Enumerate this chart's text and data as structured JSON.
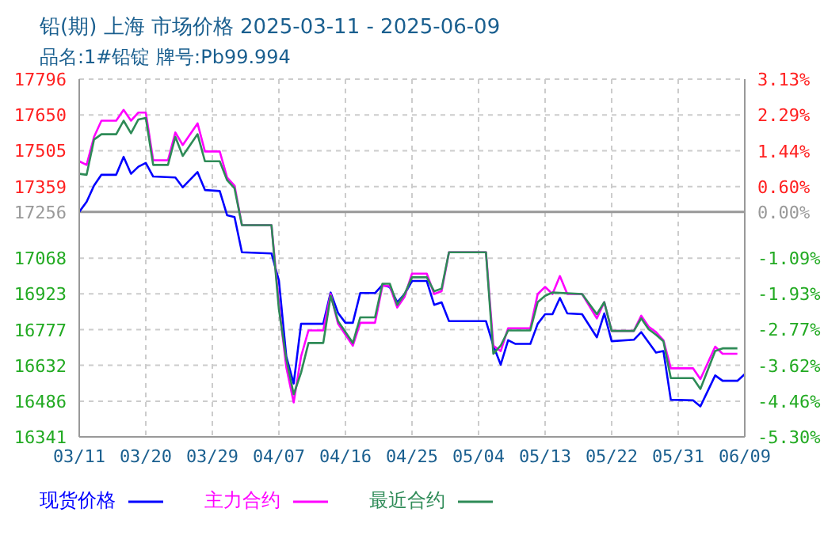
{
  "chart_data": {
    "type": "line",
    "title": "铅(期) 上海 市场价格 2025-03-11 - 2025-06-09",
    "subtitle": "品名:1#铅锭 牌号:Pb99.994",
    "xlim": [
      "2025-03-11",
      "2025-06-09"
    ],
    "xticks": [
      {
        "value": "2025-03-11",
        "label": "03/11"
      },
      {
        "value": "2025-03-20",
        "label": "03/20"
      },
      {
        "value": "2025-03-29",
        "label": "03/29"
      },
      {
        "value": "2025-04-07",
        "label": "04/07"
      },
      {
        "value": "2025-04-16",
        "label": "04/16"
      },
      {
        "value": "2025-04-25",
        "label": "04/25"
      },
      {
        "value": "2025-05-04",
        "label": "05/04"
      },
      {
        "value": "2025-05-13",
        "label": "05/13"
      },
      {
        "value": "2025-05-22",
        "label": "05/22"
      },
      {
        "value": "2025-05-31",
        "label": "05/31"
      },
      {
        "value": "2025-06-09",
        "label": "06/09"
      }
    ],
    "ylim": [
      16341,
      17796
    ],
    "yticks": [
      16341,
      16486,
      16632,
      16777,
      16923,
      17068,
      17256,
      17359,
      17505,
      17650,
      17796
    ],
    "y2lim": [
      -5.3,
      3.13
    ],
    "y2ticks": [
      {
        "value": -5.3,
        "label": "-5.30%"
      },
      {
        "value": -4.46,
        "label": "-4.46%"
      },
      {
        "value": -3.62,
        "label": "-3.62%"
      },
      {
        "value": -2.77,
        "label": "-2.77%"
      },
      {
        "value": -1.93,
        "label": "-1.93%"
      },
      {
        "value": -1.09,
        "label": "-1.09%"
      },
      {
        "value": 0,
        "label": "0.00%"
      },
      {
        "value": 0.6,
        "label": "0.60%"
      },
      {
        "value": 1.44,
        "label": "1.44%"
      },
      {
        "value": 2.29,
        "label": "2.29%"
      },
      {
        "value": 3.13,
        "label": "3.13%"
      }
    ],
    "grid": true,
    "legend": "bottom",
    "ref_lines": [
      {
        "axis": "y2",
        "value": 0,
        "color": "#999999",
        "line_style": "solid"
      }
    ],
    "series": [
      {
        "name": "现货价格",
        "color": "#0000ff",
        "x": [
          "2025-03-11",
          "2025-03-12",
          "2025-03-13",
          "2025-03-14",
          "2025-03-16",
          "2025-03-17",
          "2025-03-18",
          "2025-03-19",
          "2025-03-20",
          "2025-03-21",
          "2025-03-24",
          "2025-03-25",
          "2025-03-27",
          "2025-03-28",
          "2025-03-30",
          "2025-03-31",
          "2025-04-01",
          "2025-04-02",
          "2025-04-06",
          "2025-04-07",
          "2025-04-08",
          "2025-04-09",
          "2025-04-10",
          "2025-04-13",
          "2025-04-14",
          "2025-04-15",
          "2025-04-16",
          "2025-04-17",
          "2025-04-18",
          "2025-04-20",
          "2025-04-21",
          "2025-04-22",
          "2025-04-23",
          "2025-04-24",
          "2025-04-25",
          "2025-04-27",
          "2025-04-28",
          "2025-04-29",
          "2025-04-30",
          "2025-05-05",
          "2025-05-06",
          "2025-05-07",
          "2025-05-08",
          "2025-05-09",
          "2025-05-11",
          "2025-05-12",
          "2025-05-13",
          "2025-05-14",
          "2025-05-15",
          "2025-05-16",
          "2025-05-18",
          "2025-05-20",
          "2025-05-21",
          "2025-05-22",
          "2025-05-25",
          "2025-05-26",
          "2025-05-28",
          "2025-05-29",
          "2025-05-30",
          "2025-06-02",
          "2025-06-03",
          "2025-06-05",
          "2025-06-06",
          "2025-06-08",
          "2025-06-09"
        ],
        "values": [
          17256,
          17297,
          17363,
          17407,
          17407,
          17480,
          17411,
          17440,
          17455,
          17400,
          17396,
          17356,
          17418,
          17345,
          17341,
          17242,
          17235,
          17092,
          17087,
          16977,
          16668,
          16558,
          16801,
          16801,
          16928,
          16845,
          16805,
          16805,
          16926,
          16926,
          16959,
          16950,
          16889,
          16922,
          16975,
          16975,
          16878,
          16888,
          16812,
          16812,
          16712,
          16635,
          16734,
          16719,
          16719,
          16801,
          16840,
          16840,
          16906,
          16843,
          16840,
          16746,
          16843,
          16730,
          16736,
          16767,
          16684,
          16690,
          16492,
          16490,
          16465,
          16591,
          16569,
          16569,
          16596
        ]
      },
      {
        "name": "主力合约",
        "color": "#ff00ff",
        "x": [
          "2025-03-11",
          "2025-03-12",
          "2025-03-13",
          "2025-03-14",
          "2025-03-16",
          "2025-03-17",
          "2025-03-18",
          "2025-03-19",
          "2025-03-20",
          "2025-03-21",
          "2025-03-23",
          "2025-03-24",
          "2025-03-25",
          "2025-03-27",
          "2025-03-28",
          "2025-03-30",
          "2025-03-31",
          "2025-04-01",
          "2025-04-02",
          "2025-04-06",
          "2025-04-07",
          "2025-04-08",
          "2025-04-09",
          "2025-04-10",
          "2025-04-11",
          "2025-04-13",
          "2025-04-14",
          "2025-04-15",
          "2025-04-17",
          "2025-04-18",
          "2025-04-20",
          "2025-04-21",
          "2025-04-22",
          "2025-04-23",
          "2025-04-24",
          "2025-04-25",
          "2025-04-27",
          "2025-04-28",
          "2025-04-29",
          "2025-04-30",
          "2025-05-05",
          "2025-05-06",
          "2025-05-07",
          "2025-05-08",
          "2025-05-11",
          "2025-05-12",
          "2025-05-13",
          "2025-05-14",
          "2025-05-15",
          "2025-05-16",
          "2025-05-18",
          "2025-05-20",
          "2025-05-21",
          "2025-05-22",
          "2025-05-25",
          "2025-05-26",
          "2025-05-27",
          "2025-05-28",
          "2025-05-29",
          "2025-05-30",
          "2025-06-02",
          "2025-06-03",
          "2025-06-05",
          "2025-06-06",
          "2025-06-08"
        ],
        "values": [
          17462,
          17447,
          17561,
          17627,
          17627,
          17671,
          17627,
          17660,
          17660,
          17466,
          17466,
          17579,
          17528,
          17616,
          17502,
          17502,
          17396,
          17363,
          17202,
          17202,
          16880,
          16624,
          16481,
          16668,
          16774,
          16774,
          16922,
          16801,
          16712,
          16805,
          16805,
          16955,
          16955,
          16867,
          16911,
          17005,
          17005,
          16922,
          16933,
          17092,
          17092,
          16712,
          16690,
          16783,
          16783,
          16922,
          16951,
          16922,
          16995,
          16922,
          16922,
          16823,
          16889,
          16772,
          16772,
          16834,
          16789,
          16767,
          16734,
          16620,
          16620,
          16576,
          16708,
          16679,
          16679
        ]
      },
      {
        "name": "最近合约",
        "color": "#2e8b57",
        "x": [
          "2025-03-11",
          "2025-03-12",
          "2025-03-13",
          "2025-03-14",
          "2025-03-16",
          "2025-03-17",
          "2025-03-18",
          "2025-03-19",
          "2025-03-20",
          "2025-03-21",
          "2025-03-23",
          "2025-03-24",
          "2025-03-25",
          "2025-03-27",
          "2025-03-28",
          "2025-03-30",
          "2025-03-31",
          "2025-04-01",
          "2025-04-02",
          "2025-04-06",
          "2025-04-07",
          "2025-04-08",
          "2025-04-09",
          "2025-04-10",
          "2025-04-11",
          "2025-04-13",
          "2025-04-14",
          "2025-04-15",
          "2025-04-17",
          "2025-04-18",
          "2025-04-20",
          "2025-04-21",
          "2025-04-22",
          "2025-04-23",
          "2025-04-24",
          "2025-04-25",
          "2025-04-27",
          "2025-04-28",
          "2025-04-29",
          "2025-04-30",
          "2025-05-05",
          "2025-05-06",
          "2025-05-07",
          "2025-05-08",
          "2025-05-11",
          "2025-05-12",
          "2025-05-13",
          "2025-05-14",
          "2025-05-18",
          "2025-05-20",
          "2025-05-21",
          "2025-05-22",
          "2025-05-25",
          "2025-05-26",
          "2025-05-27",
          "2025-05-28",
          "2025-05-29",
          "2025-05-30",
          "2025-06-02",
          "2025-06-03",
          "2025-06-05",
          "2025-06-06",
          "2025-06-08"
        ],
        "values": [
          17411,
          17407,
          17550,
          17572,
          17572,
          17627,
          17576,
          17632,
          17638,
          17447,
          17447,
          17561,
          17484,
          17572,
          17462,
          17462,
          17385,
          17352,
          17202,
          17202,
          16860,
          16657,
          16514,
          16602,
          16723,
          16723,
          16915,
          16812,
          16723,
          16827,
          16827,
          16964,
          16964,
          16878,
          16922,
          16990,
          16990,
          16933,
          16944,
          17092,
          17092,
          16679,
          16712,
          16774,
          16774,
          16889,
          16915,
          16928,
          16922,
          16840,
          16889,
          16772,
          16772,
          16823,
          16779,
          16756,
          16730,
          16580,
          16580,
          16536,
          16690,
          16701,
          16701
        ]
      }
    ]
  }
}
